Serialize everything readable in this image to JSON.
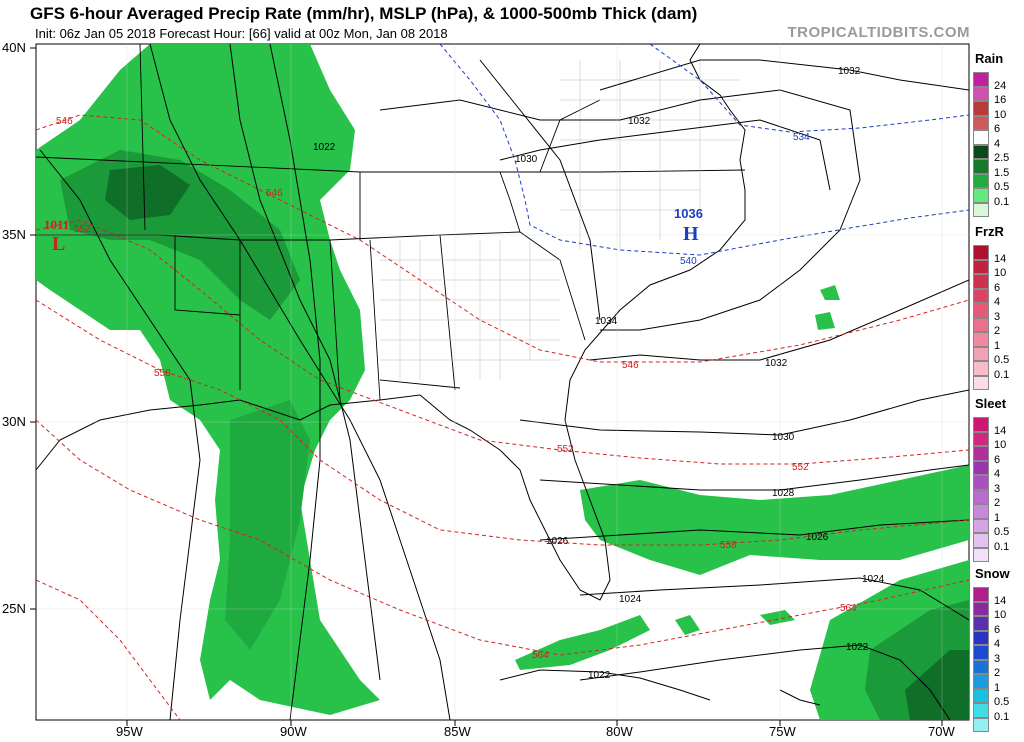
{
  "header": {
    "title": "GFS 6-hour Averaged Precip Rate (mm/hr), MSLP (hPa), & 1000-500mb Thick (dam)",
    "subtitle": "Init: 06z Jan 05 2018   Forecast Hour: [66]   valid at 00z Mon, Jan 08 2018",
    "brand": "TROPICALTIDBITS.COM"
  },
  "axes": {
    "lat_labels": [
      "40N",
      "35N",
      "30N",
      "25N"
    ],
    "lon_labels": [
      "95W",
      "90W",
      "85W",
      "80W",
      "75W",
      "70W"
    ]
  },
  "pressure_centers": {
    "low": {
      "letter": "L",
      "value": "1011",
      "color": "#cc2222"
    },
    "high": {
      "letter": "H",
      "value": "1036",
      "color": "#1a3fc0"
    }
  },
  "isobar_labels": [
    "1032",
    "1032",
    "1030",
    "1022",
    "1034",
    "1032",
    "1030",
    "1028",
    "1026",
    "1026",
    "1024",
    "1024",
    "1022",
    "1022"
  ],
  "thickness_labels": [
    "546",
    "546",
    "552",
    "558",
    "534",
    "540",
    "546",
    "552",
    "552",
    "558",
    "564",
    "564"
  ],
  "legend": {
    "rain": {
      "title": "Rain",
      "labels": [
        "24",
        "16",
        "10",
        "6",
        "4",
        "2.5",
        "1.5",
        "0.5",
        "0.1"
      ],
      "colors": [
        "#c020a0",
        "#d050b0",
        "#b83a3a",
        "#cc5a5a",
        "#ffffff",
        "#0a4a1a",
        "#147a2a",
        "#20aa40",
        "#66e880",
        "#d8f8d8"
      ]
    },
    "frzr": {
      "title": "FrzR",
      "labels": [
        "14",
        "10",
        "6",
        "4",
        "3",
        "2",
        "1",
        "0.5",
        "0.1"
      ],
      "colors": [
        "#b01030",
        "#c42040",
        "#d03050",
        "#dc4464",
        "#e45a78",
        "#ea708c",
        "#f088a0",
        "#f4a0b4",
        "#f8bcc8",
        "#fcdce4"
      ]
    },
    "sleet": {
      "title": "Sleet",
      "labels": [
        "14",
        "10",
        "6",
        "4",
        "3",
        "2",
        "1",
        "0.5",
        "0.1"
      ],
      "colors": [
        "#cc1870",
        "#d02a80",
        "#b030a0",
        "#9a34b0",
        "#aa50c0",
        "#bb6ad0",
        "#c888dc",
        "#d6a4e6",
        "#e4c2f0",
        "#f2e0f8"
      ]
    },
    "snow": {
      "title": "Snow",
      "labels": [
        "14",
        "10",
        "6",
        "4",
        "3",
        "2",
        "1",
        "0.5",
        "0.1"
      ],
      "colors": [
        "#b0208a",
        "#8a2aa0",
        "#5a30b0",
        "#2a34c0",
        "#1a4ad0",
        "#1a72d8",
        "#1a9ae0",
        "#1ac0e0",
        "#40dce8",
        "#90f0f4"
      ]
    }
  }
}
